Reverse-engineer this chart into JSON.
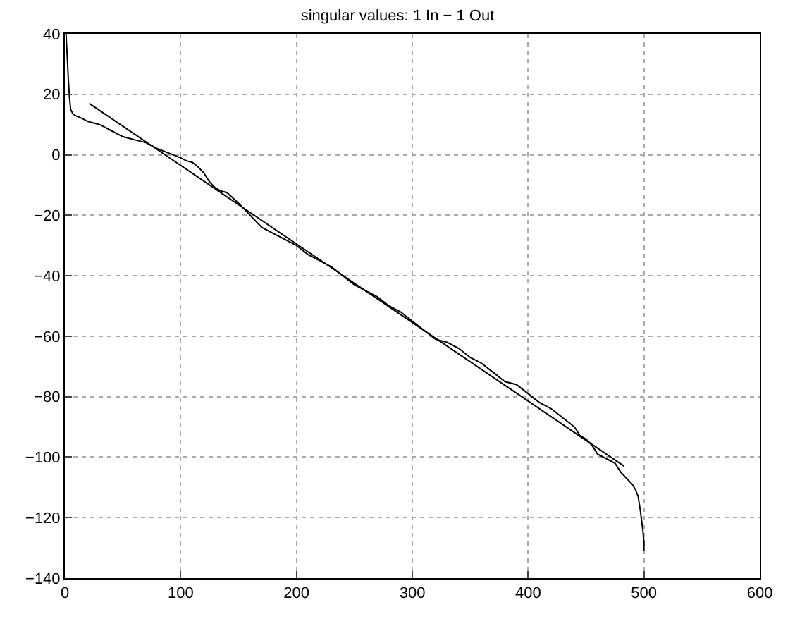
{
  "chart_data": {
    "type": "line",
    "title": "singular values: 1 In − 1 Out",
    "xlim": [
      0,
      600
    ],
    "ylim": [
      -140,
      40
    ],
    "xticks": [
      0,
      100,
      200,
      300,
      400,
      500,
      600
    ],
    "yticks": [
      {
        "value": -140,
        "label": "−140"
      },
      {
        "value": -120,
        "label": "−120"
      },
      {
        "value": -100,
        "label": "−100"
      },
      {
        "value": -80,
        "label": "−80"
      },
      {
        "value": -60,
        "label": "−60"
      },
      {
        "value": -40,
        "label": "−40"
      },
      {
        "value": -20,
        "label": "−20"
      },
      0,
      20,
      40
    ],
    "grid": true,
    "marker": "none",
    "line_style": "solid",
    "series": [
      {
        "color": "#000000",
        "x": [
          1,
          2,
          3,
          4,
          5,
          7,
          9,
          12,
          15,
          20,
          25,
          30,
          35,
          40,
          45,
          50,
          55,
          60,
          70,
          80,
          90,
          100,
          105,
          110,
          115,
          120,
          125,
          130,
          135,
          140,
          150,
          160,
          170,
          180,
          190,
          200,
          210,
          220,
          230,
          240,
          250,
          260,
          270,
          280,
          290,
          300,
          310,
          320,
          330,
          340,
          350,
          360,
          370,
          380,
          390,
          400,
          410,
          420,
          430,
          440,
          445,
          450,
          455,
          460,
          470,
          475,
          480,
          485,
          490,
          493,
          495,
          497,
          499,
          500,
          500
        ],
        "values": [
          40,
          33,
          25,
          19,
          15,
          13.5,
          13,
          12.5,
          12,
          11,
          10.5,
          10,
          9,
          8,
          7,
          6,
          5.5,
          5,
          4,
          2,
          0.5,
          -1,
          -2,
          -2.5,
          -4,
          -6,
          -9,
          -11,
          -12,
          -12.5,
          -16,
          -20,
          -24,
          -26,
          -28,
          -30,
          -33,
          -35,
          -37,
          -40,
          -43,
          -45,
          -47,
          -50,
          -52,
          -55,
          -58,
          -61,
          -62,
          -64,
          -67,
          -69,
          -72,
          -75,
          -76,
          -79,
          -82,
          -84,
          -87,
          -90,
          -93,
          -94,
          -96,
          -99,
          -101,
          -102,
          -105,
          -107,
          -109,
          -111,
          -113,
          -118,
          -124,
          -128,
          -131
        ]
      },
      {
        "color": "#000000",
        "x": [
          21,
          483
        ],
        "values": [
          17,
          -103
        ]
      }
    ]
  }
}
